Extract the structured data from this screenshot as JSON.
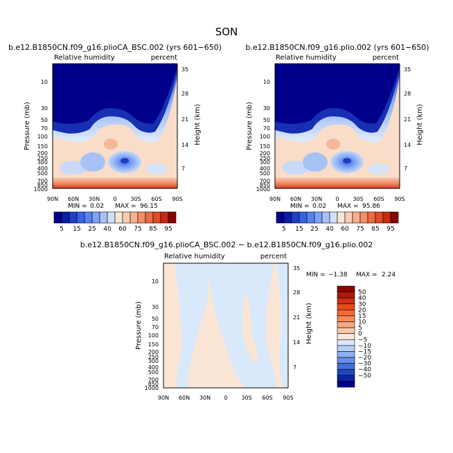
{
  "figure_title": "SON",
  "chart_data": [
    {
      "type": "heatmap",
      "title": "b.e12.B1850CN.f09_g16.plioCA_BSC.002 (yrs 601−650)",
      "variable": "Relative humidity",
      "units": "percent",
      "x_ticks": [
        "90N",
        "60N",
        "30N",
        "0",
        "30S",
        "60S",
        "90S"
      ],
      "y_label": "Pressure (mb)",
      "y_ticks": [
        "10",
        "30",
        "50",
        "70",
        "100",
        "150",
        "200",
        "250",
        "300",
        "400",
        "500",
        "700",
        "850",
        "1000"
      ],
      "y2_label": "Height (km)",
      "y2_ticks": [
        "35",
        "28",
        "21",
        "14",
        "7"
      ],
      "min_label": "MIN =",
      "min": "0.02",
      "max_label": "MAX =",
      "max": "96.15",
      "levels": [
        "5",
        "15",
        "25",
        "40",
        "60",
        "75",
        "85",
        "95"
      ],
      "colors": [
        "#00008b",
        "#0b1ca7",
        "#1f3fca",
        "#3a62e2",
        "#5a82ef",
        "#7fa2f4",
        "#a8c2f7",
        "#cfe0fb",
        "#fbe6d6",
        "#f9cdb3",
        "#f5b08e",
        "#f28e68",
        "#ec6a45",
        "#e04a28",
        "#c52a12",
        "#8b0000"
      ]
    },
    {
      "type": "heatmap",
      "title": "b.e12.B1850CN.f09_g16.plio.002 (yrs 601−650)",
      "variable": "Relative humidity",
      "units": "percent",
      "x_ticks": [
        "90N",
        "60N",
        "30N",
        "0",
        "30S",
        "60S",
        "90S"
      ],
      "y_label": "Pressure (mb)",
      "y_ticks": [
        "10",
        "30",
        "50",
        "70",
        "100",
        "150",
        "200",
        "250",
        "300",
        "400",
        "500",
        "700",
        "850",
        "1000"
      ],
      "y2_label": "Height (km)",
      "y2_ticks": [
        "35",
        "28",
        "21",
        "14",
        "7"
      ],
      "min_label": "MIN =",
      "min": "0.02",
      "max_label": "MAX =",
      "max": "95.86"
    },
    {
      "type": "heatmap",
      "title": "b.e12.B1850CN.f09_g16.plioCA_BSC.002 − b.e12.B1850CN.f09_g16.plio.002",
      "variable": "Relative humidity",
      "units": "percent",
      "x_ticks": [
        "90N",
        "60N",
        "30N",
        "0",
        "30S",
        "60S",
        "90S"
      ],
      "y_label": "Pressure (mb)",
      "y_ticks": [
        "10",
        "30",
        "50",
        "70",
        "100",
        "150",
        "200",
        "250",
        "300",
        "400",
        "500",
        "700",
        "850",
        "1000"
      ],
      "y2_label": "Height (km)",
      "y2_ticks": [
        "35",
        "28",
        "21",
        "14",
        "7"
      ],
      "min_label": "MIN =",
      "min": "−1.38",
      "max_label": "MAX =",
      "max": "2.24",
      "levels": [
        "50",
        "40",
        "30",
        "20",
        "15",
        "10",
        "5",
        "0",
        "−5",
        "−10",
        "−15",
        "−20",
        "−30",
        "−40",
        "−50"
      ],
      "colors": [
        "#8b0000",
        "#b01808",
        "#cf3012",
        "#e84a1c",
        "#f56a34",
        "#f78a58",
        "#f8a982",
        "#f9c8aa",
        "#fbe8d8",
        "#d8e9fc",
        "#b6cff7",
        "#8eb0f2",
        "#6690ea",
        "#4470dc",
        "#1f47c4",
        "#0b24a5",
        "#00008b"
      ]
    }
  ]
}
